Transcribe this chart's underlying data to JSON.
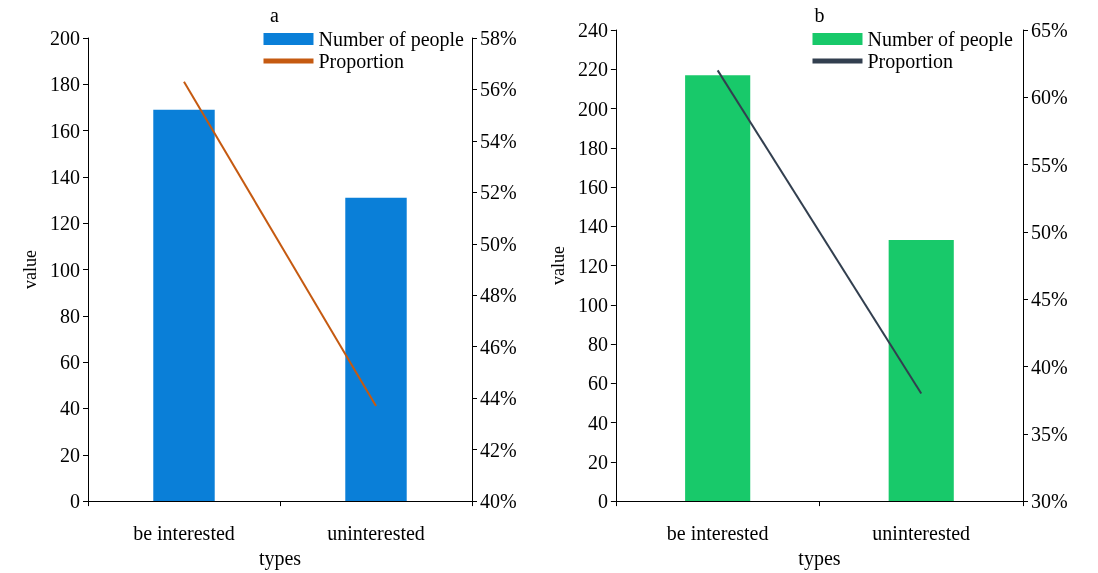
{
  "chart_data": [
    {
      "type": "bar",
      "title": "a",
      "xlabel": "types",
      "ylabel": "value",
      "categories": [
        "be interested",
        "uninterested"
      ],
      "legend": "top right",
      "grid": false,
      "series": [
        {
          "name": "Number of people",
          "color": "#0a7fd8",
          "values": [
            169,
            131
          ]
        },
        {
          "name": "Proportion",
          "type": "line",
          "axis": "y2",
          "color": "#c55a11",
          "marker": "none",
          "values": [
            56.3,
            43.7
          ]
        }
      ],
      "ylim": [
        0,
        200
      ],
      "yticks": [
        0,
        20,
        40,
        60,
        80,
        100,
        120,
        140,
        160,
        180,
        200
      ],
      "y2lim": [
        40,
        58
      ],
      "y2ticks": [
        {
          "value": 40,
          "label": "40%"
        },
        {
          "value": 42,
          "label": "42%"
        },
        {
          "value": 44,
          "label": "44%"
        },
        {
          "value": 46,
          "label": "46%"
        },
        {
          "value": 48,
          "label": "48%"
        },
        {
          "value": 50,
          "label": "50%"
        },
        {
          "value": 52,
          "label": "52%"
        },
        {
          "value": 54,
          "label": "54%"
        },
        {
          "value": 56,
          "label": "56%"
        },
        {
          "value": 58,
          "label": "58%"
        }
      ]
    },
    {
      "type": "bar",
      "title": "b",
      "xlabel": "types",
      "ylabel": "value",
      "categories": [
        "be interested",
        "uninterested"
      ],
      "legend": "top right",
      "grid": false,
      "series": [
        {
          "name": "Number of people",
          "color": "#18c96a",
          "values": [
            217,
            133
          ]
        },
        {
          "name": "Proportion",
          "type": "line",
          "axis": "y2",
          "color": "#323f4f",
          "marker": "none",
          "values": [
            62,
            38
          ]
        }
      ],
      "ylim": [
        0,
        240
      ],
      "yticks": [
        0,
        20,
        40,
        60,
        80,
        100,
        120,
        140,
        160,
        180,
        200,
        220,
        240
      ],
      "y2lim": [
        30,
        65
      ],
      "y2ticks": [
        {
          "value": 30,
          "label": "30%"
        },
        {
          "value": 35,
          "label": "35%"
        },
        {
          "value": 40,
          "label": "40%"
        },
        {
          "value": 45,
          "label": "45%"
        },
        {
          "value": 50,
          "label": "50%"
        },
        {
          "value": 55,
          "label": "55%"
        },
        {
          "value": 60,
          "label": "60%"
        },
        {
          "value": 65,
          "label": "65%"
        }
      ]
    }
  ]
}
